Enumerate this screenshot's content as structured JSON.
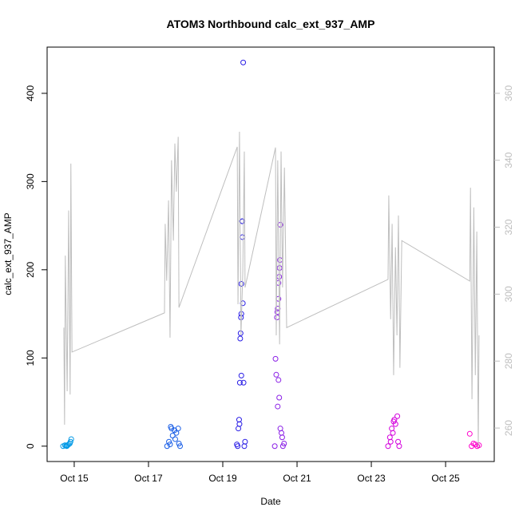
{
  "chart_data": {
    "type": "scatter",
    "title": "ATOM3 Northbound calc_ext_937_AMP",
    "x_label": "Date",
    "y_label": "calc_ext_937_AMP",
    "xlim": [
      14.27,
      26.31
    ],
    "xticks": [
      {
        "value": 15,
        "label": "Oct 15"
      },
      {
        "value": 17,
        "label": "Oct 17"
      },
      {
        "value": 19,
        "label": "Oct 19"
      },
      {
        "value": 21,
        "label": "Oct 21"
      },
      {
        "value": 23,
        "label": "Oct 23"
      },
      {
        "value": 25,
        "label": "Oct 25"
      }
    ],
    "ylim": [
      -17.4,
      452.4
    ],
    "yticks": [
      0,
      100,
      200,
      300,
      400
    ],
    "y2lim": [
      250,
      373.8
    ],
    "y2ticks": [
      260,
      280,
      300,
      320,
      340,
      360
    ],
    "y2color": "#bebebe",
    "series": [
      {
        "type": "scatter",
        "x": [
          14.7,
          14.75,
          14.8,
          14.85,
          14.9,
          14.92,
          14.88,
          14.78,
          14.82,
          17.5,
          17.55,
          17.6,
          17.62,
          17.65,
          17.7,
          17.72,
          17.75,
          17.8,
          17.82,
          17.85,
          17.58,
          19.4,
          19.42,
          19.44,
          19.46,
          19.47,
          19.48,
          19.49,
          19.5,
          19.5,
          19.52,
          19.53,
          19.54,
          19.55,
          19.53,
          19.45,
          19.5,
          19.56,
          19.58,
          19.38,
          19.6,
          20.4,
          20.42,
          20.44,
          20.46,
          20.47,
          20.48,
          20.5,
          20.5,
          20.52,
          20.53,
          20.54,
          20.55,
          20.5,
          20.52,
          20.48,
          20.55,
          20.6,
          20.62,
          20.58,
          20.65,
          23.45,
          23.5,
          23.55,
          23.6,
          23.62,
          23.65,
          23.7,
          23.72,
          23.75,
          23.58,
          23.52,
          25.65,
          25.7,
          25.75,
          25.8,
          25.85,
          25.9
        ],
        "values": [
          0,
          1,
          0,
          2,
          5,
          8,
          3,
          0.5,
          1,
          0,
          5,
          22,
          20,
          12,
          18,
          8,
          15,
          20,
          3,
          0,
          2,
          0,
          20,
          30,
          72,
          122,
          128,
          146,
          150,
          184,
          255,
          237,
          162,
          435,
          255,
          25,
          80,
          72,
          0,
          2,
          5,
          0,
          99,
          81,
          146,
          152,
          156,
          167,
          185,
          192,
          202,
          211,
          251,
          75,
          55,
          45,
          20,
          10,
          0,
          15,
          3,
          0,
          10,
          20,
          28,
          30,
          25,
          34,
          5,
          0,
          15,
          5,
          14,
          0,
          3,
          2,
          0,
          1
        ],
        "colors": [
          "#0099e6",
          "#0099e6",
          "#0099e6",
          "#0099e6",
          "#0099e6",
          "#0099e6",
          "#0099e6",
          "#0099e6",
          "#0099e6",
          "#1a5ee6",
          "#1a5ee6",
          "#1a5ee6",
          "#1a5ee6",
          "#1a5ee6",
          "#1a5ee6",
          "#1a5ee6",
          "#1a5ee6",
          "#1a5ee6",
          "#1a5ee6",
          "#1a5ee6",
          "#1a5ee6",
          "#2a1ee6",
          "#2a1ee6",
          "#2a1ee6",
          "#2a1ee6",
          "#2a1ee6",
          "#2a1ee6",
          "#2a1ee6",
          "#2a1ee6",
          "#2a1ee6",
          "#2a1ee6",
          "#2a1ee6",
          "#2a1ee6",
          "#2a1ee6",
          "#2a1ee6",
          "#2a1ee6",
          "#2a1ee6",
          "#2a1ee6",
          "#2a1ee6",
          "#2a1ee6",
          "#2a1ee6",
          "#8a1ee6",
          "#8a1ee6",
          "#8a1ee6",
          "#8a1ee6",
          "#8a1ee6",
          "#8a1ee6",
          "#8a1ee6",
          "#8a1ee6",
          "#8a1ee6",
          "#8a1ee6",
          "#8a1ee6",
          "#8a1ee6",
          "#8a1ee6",
          "#8a1ee6",
          "#8a1ee6",
          "#8a1ee6",
          "#8a1ee6",
          "#8a1ee6",
          "#8a1ee6",
          "#8a1ee6",
          "#d400dd",
          "#d400dd",
          "#d400dd",
          "#d400dd",
          "#d400dd",
          "#d400dd",
          "#d400dd",
          "#d400dd",
          "#d400dd",
          "#d400dd",
          "#d400dd",
          "#ff00cc",
          "#ff00cc",
          "#ff00cc",
          "#ff00cc",
          "#ff00cc",
          "#ff00cc"
        ]
      },
      {
        "type": "line",
        "axis": "y2",
        "color": "#bebebe",
        "x": [
          14.72,
          14.74,
          14.76,
          14.81,
          14.85,
          14.89,
          14.91,
          14.94,
          17.43,
          17.45,
          17.49,
          17.54,
          17.58,
          17.62,
          17.67,
          17.71,
          17.75,
          17.8,
          17.82,
          19.39,
          19.41,
          19.45,
          19.49,
          19.54,
          19.58,
          19.6,
          20.42,
          20.44,
          20.48,
          20.53,
          20.57,
          20.61,
          20.66,
          20.72,
          23.45,
          23.47,
          23.52,
          23.56,
          23.6,
          23.65,
          23.69,
          23.73,
          23.77,
          23.82,
          25.65,
          25.67,
          25.71,
          25.76,
          25.8,
          25.84,
          25.88,
          25.9
        ],
        "values": [
          290,
          261,
          311.5,
          271,
          325,
          270,
          339,
          282.7,
          294.4,
          321,
          304,
          328,
          287,
          340,
          316,
          345,
          330.6,
          347,
          296,
          344,
          297,
          348.5,
          287.7,
          306.8,
          342.6,
          302,
          343.8,
          287.7,
          340,
          285,
          342.6,
          302,
          337.8,
          290,
          304.4,
          329.5,
          292.5,
          321,
          275.8,
          314,
          287.7,
          323.5,
          278,
          316,
          303.9,
          331.8,
          268.6,
          325.9,
          275.8,
          318.7,
          254.3,
          287.7
        ]
      }
    ]
  }
}
